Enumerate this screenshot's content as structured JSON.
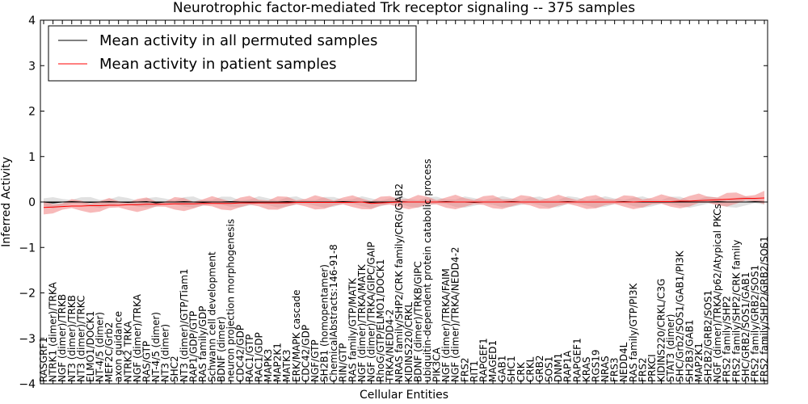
{
  "chart_data": {
    "type": "line",
    "title": "Neurotrophic factor-mediated Trk receptor signaling -- 375 samples",
    "xlabel": "Cellular Entities",
    "ylabel": "Inferred Activity",
    "ylim": [
      -4,
      4
    ],
    "yticks": [
      -4,
      -3,
      -2,
      -1,
      0,
      1,
      2,
      3,
      4
    ],
    "grid": false,
    "legend_position": "top-left",
    "categories": [
      "RASGRF1",
      "NTRK1 (dimer)/TRKA",
      "NGF (dimer)/TRKB",
      "NT3 (dimer)/TRKB",
      "NT3 (dimer)/TRKC",
      "ELMO1/DOCK1",
      "NT-4/5 (dimer)",
      "MEF2C/Grb2",
      "axon guidance",
      "NTRK2 TRKA",
      "NGF (dimer)/TRKA",
      "RAS/GTP",
      "NT-4/5 (dimer)",
      "NT3 (dimer)",
      "SHC2",
      "NT3 (dimer)/GTP/Tiam1",
      "RAP1/GDP/GTP",
      "RAS family/GDP",
      "Schwann cell development",
      "BDNF (dimer)",
      "neuron projection morphogenesis",
      "CDC42/GDP",
      "RAC1/GTP",
      "RAC1/GDP",
      "MAPK3",
      "MAP2K1",
      "MATK3",
      "ERK/MAPK cascade",
      "CDC42/GDP",
      "NGF/GTP",
      "SH2B1 (homopentamer)",
      "ChemicalAbstracts:146-91-8",
      "RIN/GTP",
      "RAS family/GTP/MATK",
      "NGF (dimer)/TRKA/MATK",
      "NGF (dimer)/TRKA/GIPC/GAIP",
      "RhoG/GTP/ELMO1/DOCK1",
      "TRKA/NEDD4-2",
      "NRAS family/SHP2/CRK family/CRG/GAB2",
      "KIDINS220/CRKL",
      "BDNF (dimer)/TRKB/GIPC",
      "ubiquitin-dependent protein catabolic process",
      "PIK3CA",
      "NGF (dimer)/TRKA/FAIM",
      "NGF (dimer)/TRKA/NEDD4-2",
      "FRS2",
      "RIT1",
      "RAPGEF1",
      "MAGED1",
      "GAB1",
      "SHC1",
      "CRK",
      "CRKL",
      "GRB2",
      "SOS1",
      "DNM1",
      "RAP1A",
      "RAPGEF1",
      "KRAS",
      "RGS19",
      "NRAS",
      "FRS3",
      "NEDD4L",
      "RAS family/GTP/PI3K",
      "FRS2",
      "PRKCI",
      "KIDINS220/CRKL/C3G",
      "STAT3 (dimer)",
      "SHC/Grb2/SOS1/GAB1/PI3K",
      "SH2B3/GAB1",
      "MAP2K1",
      "SH2B2/GRB2/SOS1",
      "NGF (dimer)/TRKA/p62/Atypical PKCs",
      "FRS2 family/SHP2",
      "FRS2 family/SHP2/CRK family",
      "SHC/GRB2/SOS1/GAB1",
      "FRS2 family/GRB2/SOS1",
      "FRS2 family/SHP2/GRB2/SOS1"
    ],
    "series": [
      {
        "name": "Mean activity in all permuted samples",
        "color": "#000000",
        "band_color": "#c8c8c8",
        "band_halfwidth": 0.08,
        "values": [
          0.0,
          -0.02,
          0.0,
          0.01,
          0.0,
          -0.01,
          0.0,
          0.01,
          0.0,
          -0.01,
          0.0,
          0.01,
          -0.02,
          0.0,
          0.0,
          0.01,
          0.0,
          -0.01,
          0.0,
          0.0,
          0.01,
          0.0,
          -0.01,
          0.0,
          0.0,
          0.0,
          0.01,
          0.0,
          -0.01,
          0.0,
          0.0,
          0.0,
          0.01,
          0.0,
          0.0,
          -0.01,
          0.0,
          0.0,
          0.01,
          0.0,
          0.0,
          0.0,
          0.0,
          0.01,
          0.0,
          0.0,
          -0.01,
          0.0,
          0.0,
          0.0,
          0.01,
          0.0,
          0.0,
          0.0,
          0.0,
          0.0,
          0.01,
          0.0,
          0.0,
          0.0,
          0.0,
          0.0,
          0.01,
          0.0,
          0.0,
          0.0,
          0.0,
          0.0,
          0.01,
          0.0,
          0.0,
          0.0,
          0.01,
          0.0,
          0.0,
          0.0,
          0.01,
          0.0
        ]
      },
      {
        "name": "Mean activity in patient samples",
        "color": "#ff0000",
        "band_color": "#f08080",
        "band_halfwidth": 0.1,
        "values": [
          -0.12,
          -0.11,
          -0.1,
          -0.09,
          -0.09,
          -0.08,
          -0.08,
          -0.07,
          -0.07,
          -0.06,
          -0.06,
          -0.05,
          -0.05,
          -0.05,
          -0.04,
          -0.04,
          -0.04,
          -0.03,
          -0.03,
          -0.03,
          -0.03,
          -0.02,
          -0.02,
          -0.02,
          -0.02,
          -0.02,
          -0.02,
          -0.01,
          -0.01,
          -0.01,
          -0.01,
          -0.01,
          -0.01,
          -0.01,
          0.0,
          -0.03,
          -0.02,
          -0.01,
          0.0,
          0.0,
          0.0,
          0.0,
          0.0,
          0.0,
          0.0,
          0.0,
          0.0,
          0.0,
          0.0,
          0.0,
          0.0,
          0.0,
          0.0,
          0.0,
          0.0,
          0.0,
          0.0,
          0.0,
          0.0,
          0.0,
          0.0,
          0.0,
          0.0,
          0.0,
          0.01,
          0.01,
          0.01,
          0.01,
          0.02,
          0.02,
          0.03,
          0.04,
          0.05,
          0.06,
          0.07,
          0.08,
          0.08,
          0.09
        ]
      }
    ]
  }
}
